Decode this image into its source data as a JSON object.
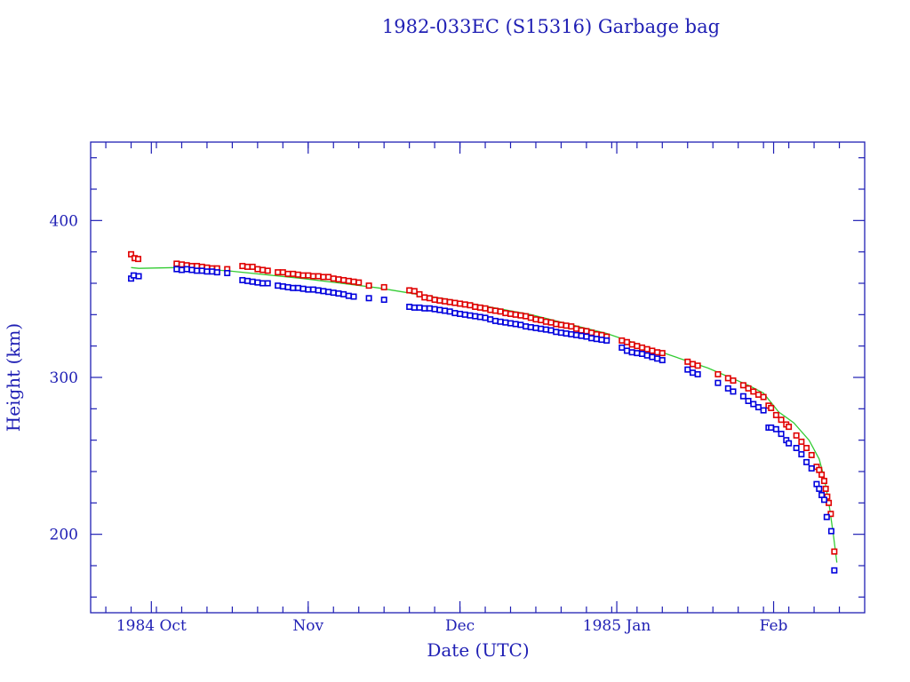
{
  "chart_data": {
    "type": "scatter",
    "title": "1982-033EC (S15316) Garbage bag",
    "xlabel": "Date (UTC)",
    "ylabel": "Height (km)",
    "x_units": "days since 1984 Oct 1",
    "xlim": [
      -12,
      141
    ],
    "ylim": [
      150,
      450
    ],
    "x_ticks": [
      {
        "day": 0,
        "label": "1984 Oct"
      },
      {
        "day": 31,
        "label": "Nov"
      },
      {
        "day": 61,
        "label": "Dec"
      },
      {
        "day": 92,
        "label": "1985 Jan"
      },
      {
        "day": 123,
        "label": "Feb"
      }
    ],
    "y_ticks": [
      200,
      300,
      400
    ],
    "y_minor_step": 20,
    "x_minor_step_days": 5,
    "grid": false,
    "colors": {
      "axis": "#1f1fb4",
      "apogee": "#e00000",
      "perigee": "#0000dd",
      "mean": "#33cc33"
    },
    "series": [
      {
        "name": "apogee",
        "kind": "points",
        "color": "#e00000",
        "points": [
          [
            -4,
            378.5
          ],
          [
            -3.3,
            376
          ],
          [
            -2.6,
            375.5
          ],
          [
            5,
            372.5
          ],
          [
            6,
            372
          ],
          [
            7,
            371.5
          ],
          [
            8,
            371
          ],
          [
            9,
            371
          ],
          [
            10,
            370.5
          ],
          [
            11,
            370
          ],
          [
            12,
            369.5
          ],
          [
            13,
            369.5
          ],
          [
            15,
            369
          ],
          [
            18,
            371
          ],
          [
            19,
            370.5
          ],
          [
            20,
            370.5
          ],
          [
            21,
            369
          ],
          [
            22,
            368.5
          ],
          [
            23,
            368
          ],
          [
            25,
            367
          ],
          [
            26,
            367
          ],
          [
            27,
            366
          ],
          [
            28,
            366
          ],
          [
            29,
            365.5
          ],
          [
            30,
            365
          ],
          [
            31,
            365
          ],
          [
            32,
            364.5
          ],
          [
            33,
            364.5
          ],
          [
            34,
            364
          ],
          [
            35,
            364
          ],
          [
            36,
            363
          ],
          [
            37,
            362.5
          ],
          [
            38,
            362
          ],
          [
            39,
            361.5
          ],
          [
            40,
            361
          ],
          [
            41,
            360.5
          ],
          [
            43,
            358.5
          ],
          [
            46,
            357.5
          ],
          [
            51,
            355.5
          ],
          [
            52,
            355
          ],
          [
            53,
            353
          ],
          [
            54,
            351
          ],
          [
            55,
            350.5
          ],
          [
            56,
            349.5
          ],
          [
            57,
            349
          ],
          [
            58,
            348.5
          ],
          [
            59,
            348
          ],
          [
            60,
            347.5
          ],
          [
            61,
            347
          ],
          [
            62,
            346.5
          ],
          [
            63,
            346
          ],
          [
            64,
            345
          ],
          [
            65,
            344.5
          ],
          [
            66,
            344
          ],
          [
            67,
            343
          ],
          [
            68,
            342.5
          ],
          [
            69,
            342
          ],
          [
            70,
            341
          ],
          [
            71,
            340.5
          ],
          [
            72,
            340
          ],
          [
            73,
            339.5
          ],
          [
            74,
            339
          ],
          [
            75,
            338
          ],
          [
            76,
            337
          ],
          [
            77,
            336.5
          ],
          [
            78,
            335.5
          ],
          [
            79,
            335
          ],
          [
            80,
            334
          ],
          [
            81,
            333.5
          ],
          [
            82,
            333
          ],
          [
            83,
            332.5
          ],
          [
            84,
            331
          ],
          [
            85,
            330
          ],
          [
            86,
            329.5
          ],
          [
            87,
            328.5
          ],
          [
            88,
            327.5
          ],
          [
            89,
            327
          ],
          [
            90,
            326
          ],
          [
            93,
            323.5
          ],
          [
            94,
            322.5
          ],
          [
            95,
            321
          ],
          [
            96,
            320
          ],
          [
            97,
            319
          ],
          [
            98,
            318
          ],
          [
            99,
            317
          ],
          [
            100,
            316
          ],
          [
            101,
            315.5
          ],
          [
            106,
            310
          ],
          [
            107,
            308.5
          ],
          [
            108,
            307.5
          ],
          [
            112,
            302
          ],
          [
            114,
            299.5
          ],
          [
            115,
            298
          ],
          [
            117,
            295
          ],
          [
            118,
            293
          ],
          [
            119,
            291
          ],
          [
            120,
            289
          ],
          [
            121,
            287.5
          ],
          [
            122,
            282
          ],
          [
            122.5,
            280.5
          ],
          [
            123.5,
            276
          ],
          [
            124.5,
            273
          ],
          [
            125.5,
            270
          ],
          [
            126,
            268.5
          ],
          [
            127.5,
            263
          ],
          [
            128.5,
            259
          ],
          [
            129.5,
            255
          ],
          [
            130.5,
            250.5
          ],
          [
            131.5,
            243
          ],
          [
            132,
            241
          ],
          [
            132.5,
            238
          ],
          [
            133,
            234
          ],
          [
            133.3,
            229
          ],
          [
            133.6,
            224
          ],
          [
            133.9,
            220
          ],
          [
            134.3,
            213
          ],
          [
            135,
            189
          ]
        ]
      },
      {
        "name": "perigee",
        "kind": "points",
        "color": "#0000dd",
        "points": [
          [
            -4,
            363
          ],
          [
            -3.5,
            365
          ],
          [
            -2.5,
            364.5
          ],
          [
            5,
            369
          ],
          [
            6,
            368.5
          ],
          [
            7,
            369
          ],
          [
            8,
            368.5
          ],
          [
            9,
            368
          ],
          [
            10,
            368
          ],
          [
            11,
            367.5
          ],
          [
            12,
            367.5
          ],
          [
            13,
            367
          ],
          [
            15,
            366.5
          ],
          [
            18,
            362
          ],
          [
            19,
            361.5
          ],
          [
            20,
            361
          ],
          [
            21,
            360.5
          ],
          [
            22,
            360
          ],
          [
            23,
            360
          ],
          [
            25,
            358.5
          ],
          [
            26,
            358
          ],
          [
            27,
            357.5
          ],
          [
            28,
            357
          ],
          [
            29,
            357
          ],
          [
            30,
            356.5
          ],
          [
            31,
            356
          ],
          [
            32,
            356
          ],
          [
            33,
            355.5
          ],
          [
            34,
            355
          ],
          [
            35,
            354.5
          ],
          [
            36,
            354
          ],
          [
            37,
            353.5
          ],
          [
            38,
            353
          ],
          [
            39,
            352
          ],
          [
            40,
            351.5
          ],
          [
            43,
            350.5
          ],
          [
            46,
            349.5
          ],
          [
            51,
            345
          ],
          [
            52,
            344.5
          ],
          [
            53,
            344.5
          ],
          [
            54,
            344
          ],
          [
            55,
            344
          ],
          [
            56,
            343.5
          ],
          [
            57,
            343
          ],
          [
            58,
            342.5
          ],
          [
            59,
            342
          ],
          [
            60,
            341
          ],
          [
            61,
            340.5
          ],
          [
            62,
            340
          ],
          [
            63,
            339.5
          ],
          [
            64,
            339
          ],
          [
            65,
            338.5
          ],
          [
            66,
            338
          ],
          [
            67,
            337
          ],
          [
            68,
            336
          ],
          [
            69,
            335.5
          ],
          [
            70,
            335
          ],
          [
            71,
            334.5
          ],
          [
            72,
            334
          ],
          [
            73,
            333.5
          ],
          [
            74,
            332.5
          ],
          [
            75,
            332
          ],
          [
            76,
            331.5
          ],
          [
            77,
            331
          ],
          [
            78,
            330.5
          ],
          [
            79,
            330
          ],
          [
            80,
            329
          ],
          [
            81,
            328.5
          ],
          [
            82,
            328
          ],
          [
            83,
            327.5
          ],
          [
            84,
            327
          ],
          [
            85,
            326.5
          ],
          [
            86,
            326
          ],
          [
            87,
            325
          ],
          [
            88,
            324.5
          ],
          [
            89,
            324
          ],
          [
            90,
            323.5
          ],
          [
            93,
            319
          ],
          [
            94,
            317
          ],
          [
            95,
            316
          ],
          [
            96,
            315.5
          ],
          [
            97,
            315
          ],
          [
            98,
            314
          ],
          [
            99,
            313
          ],
          [
            100,
            312
          ],
          [
            101,
            311
          ],
          [
            106,
            305
          ],
          [
            107,
            303
          ],
          [
            108,
            302
          ],
          [
            112,
            296.5
          ],
          [
            114,
            293
          ],
          [
            115,
            291
          ],
          [
            117,
            288
          ],
          [
            118,
            285
          ],
          [
            119,
            283
          ],
          [
            120,
            281
          ],
          [
            121,
            279
          ],
          [
            122,
            268
          ],
          [
            122.5,
            268
          ],
          [
            123.5,
            267
          ],
          [
            124.5,
            264
          ],
          [
            125.5,
            260
          ],
          [
            126,
            258
          ],
          [
            127.5,
            255
          ],
          [
            128.5,
            251
          ],
          [
            129.5,
            246
          ],
          [
            130.5,
            242
          ],
          [
            131.5,
            232
          ],
          [
            132,
            229
          ],
          [
            132.5,
            225
          ],
          [
            133,
            222
          ],
          [
            133.5,
            211
          ],
          [
            134.4,
            202
          ],
          [
            135,
            177
          ]
        ]
      },
      {
        "name": "mean",
        "kind": "line",
        "color": "#33cc33",
        "points": [
          [
            -4,
            370
          ],
          [
            -2.5,
            369.5
          ],
          [
            5,
            370
          ],
          [
            15,
            368
          ],
          [
            30,
            363
          ],
          [
            45,
            357
          ],
          [
            60,
            349
          ],
          [
            75,
            340
          ],
          [
            90,
            328
          ],
          [
            100,
            317
          ],
          [
            110,
            306
          ],
          [
            118,
            295
          ],
          [
            121,
            290
          ],
          [
            122.5,
            284
          ],
          [
            124,
            278
          ],
          [
            127,
            271
          ],
          [
            130,
            260
          ],
          [
            132,
            248
          ],
          [
            133,
            236
          ],
          [
            134,
            218
          ],
          [
            134.8,
            200
          ],
          [
            135.3,
            187
          ],
          [
            135.5,
            182
          ]
        ]
      }
    ]
  }
}
